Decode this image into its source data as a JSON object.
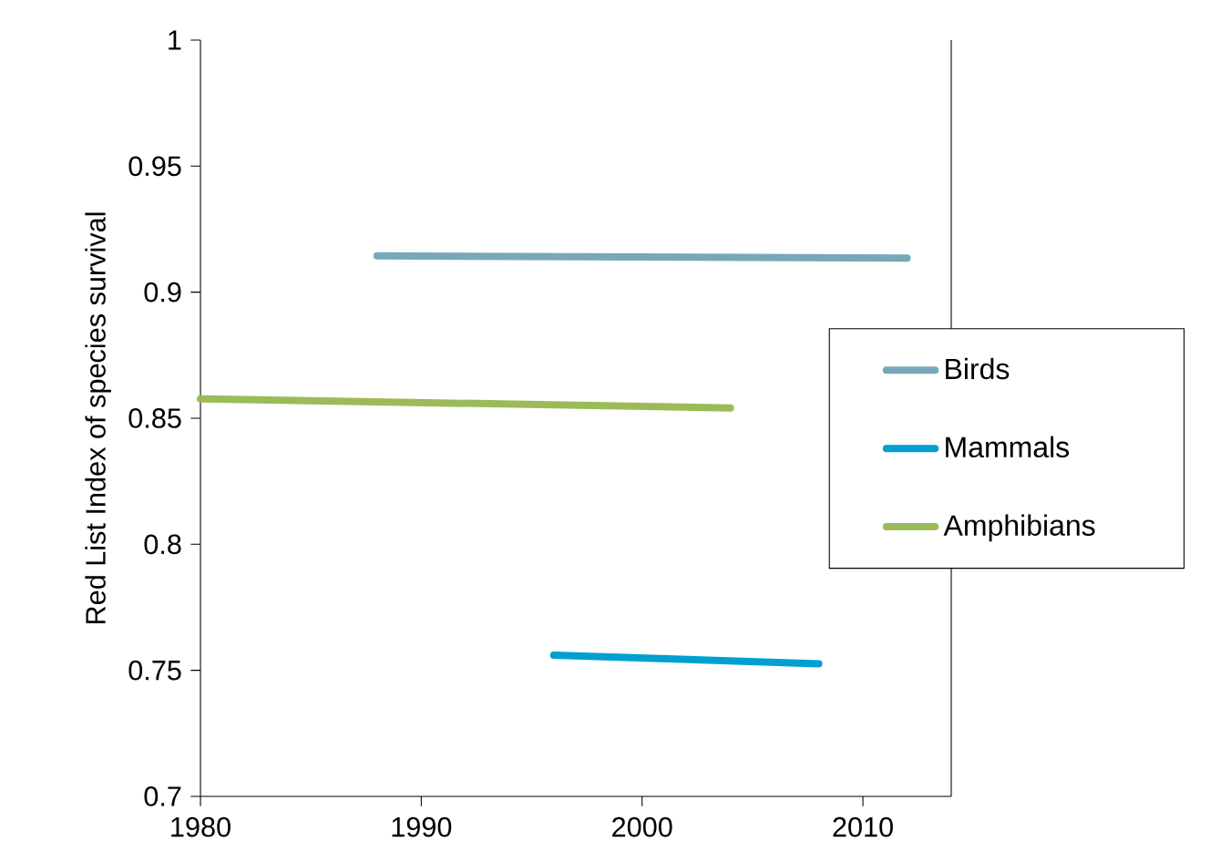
{
  "chart_data": {
    "type": "line",
    "ylabel": "Red List Index of species survival",
    "xlim": [
      1980,
      2014
    ],
    "ylim": [
      0.7,
      1
    ],
    "xticks": [
      1980,
      1990,
      2000,
      2010
    ],
    "yticks": [
      0.7,
      0.75,
      0.8,
      0.85,
      0.9,
      0.95,
      1
    ],
    "legend": "right",
    "line_style": "solid",
    "marker": "none",
    "series": [
      {
        "name": "Birds",
        "color": "#78a8b8",
        "x": [
          1988,
          2012
        ],
        "values": [
          0.9144,
          0.9135
        ]
      },
      {
        "name": "Mammals",
        "color": "#00a0d0",
        "x": [
          1996,
          2008
        ],
        "values": [
          0.756,
          0.7526
        ]
      },
      {
        "name": "Amphibians",
        "color": "#9bbb59",
        "x": [
          1980,
          2004
        ],
        "values": [
          0.8577,
          0.8541
        ]
      }
    ]
  }
}
